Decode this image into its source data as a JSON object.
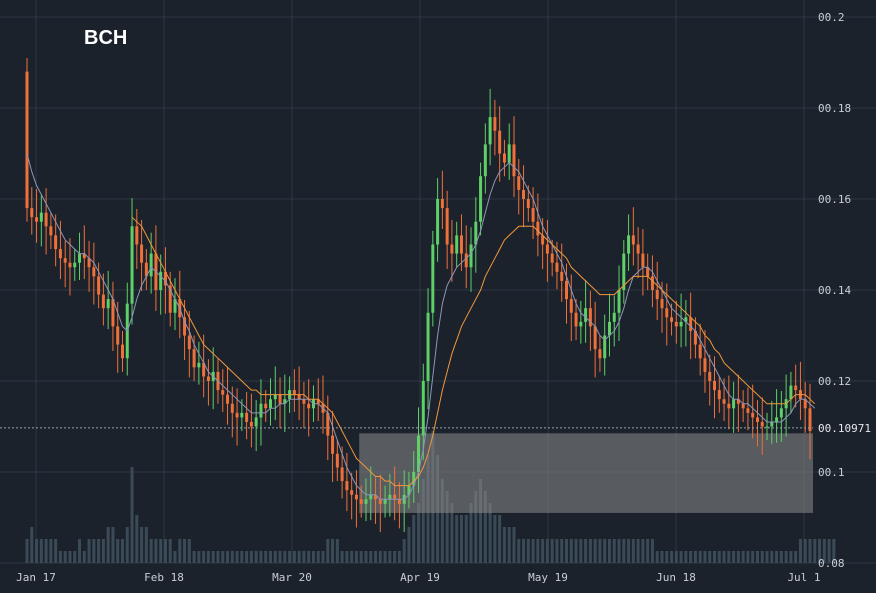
{
  "chart_data": {
    "type": "candlestick",
    "title": "BCH",
    "y_axis": {
      "range": [
        0.08,
        0.2
      ],
      "ticks": [
        {
          "value": 0.2,
          "label": "00.2"
        },
        {
          "value": 0.18,
          "label": "00.18"
        },
        {
          "value": 0.16,
          "label": "00.16"
        },
        {
          "value": 0.14,
          "label": "00.14"
        },
        {
          "value": 0.12,
          "label": "00.12"
        },
        {
          "value": 0.1,
          "label": "00.1"
        },
        {
          "value": 0.08,
          "label": "0.08"
        }
      ],
      "position": "right"
    },
    "x_axis": {
      "ticks": [
        {
          "label": "Jan 17",
          "index": 0
        },
        {
          "label": "Feb 18",
          "index": 32
        },
        {
          "label": "Mar 20",
          "index": 62
        },
        {
          "label": "Apr 19",
          "index": 92
        },
        {
          "label": "May 19",
          "index": 122
        },
        {
          "label": "Jun 18",
          "index": 152
        },
        {
          "label": "Jul 1",
          "index": 182
        }
      ]
    },
    "current_price": {
      "value": 0.10971,
      "label": "00.10971"
    },
    "highlight_zone": {
      "from_index": 70,
      "to_index": 186,
      "low": 0.091,
      "high": 0.1085
    },
    "up_color": "#5fd068",
    "down_color": "#f0703a",
    "ma_fast_color": "#8e96b8",
    "ma_slow_color": "#f2973c",
    "volume_color": "#3b4a57",
    "grid": true,
    "closes": [
      0.158,
      0.156,
      0.155,
      0.157,
      0.154,
      0.152,
      0.149,
      0.147,
      0.146,
      0.145,
      0.146,
      0.148,
      0.147,
      0.145,
      0.143,
      0.139,
      0.136,
      0.138,
      0.132,
      0.128,
      0.125,
      0.137,
      0.154,
      0.15,
      0.146,
      0.143,
      0.148,
      0.14,
      0.144,
      0.141,
      0.135,
      0.138,
      0.134,
      0.13,
      0.127,
      0.123,
      0.124,
      0.121,
      0.12,
      0.122,
      0.118,
      0.117,
      0.115,
      0.113,
      0.112,
      0.113,
      0.111,
      0.11,
      0.112,
      0.115,
      0.114,
      0.116,
      0.117,
      0.115,
      0.116,
      0.118,
      0.117,
      0.116,
      0.115,
      0.114,
      0.116,
      0.115,
      0.113,
      0.108,
      0.104,
      0.101,
      0.098,
      0.096,
      0.095,
      0.094,
      0.093,
      0.094,
      0.095,
      0.094,
      0.093,
      0.094,
      0.095,
      0.094,
      0.093,
      0.095,
      0.097,
      0.1,
      0.108,
      0.12,
      0.135,
      0.15,
      0.16,
      0.158,
      0.15,
      0.148,
      0.152,
      0.148,
      0.145,
      0.15,
      0.155,
      0.165,
      0.172,
      0.178,
      0.175,
      0.17,
      0.168,
      0.172,
      0.165,
      0.162,
      0.16,
      0.158,
      0.155,
      0.152,
      0.15,
      0.148,
      0.146,
      0.144,
      0.142,
      0.138,
      0.135,
      0.132,
      0.133,
      0.136,
      0.132,
      0.127,
      0.125,
      0.13,
      0.133,
      0.135,
      0.14,
      0.148,
      0.152,
      0.15,
      0.148,
      0.145,
      0.143,
      0.14,
      0.138,
      0.136,
      0.134,
      0.133,
      0.132,
      0.133,
      0.134,
      0.131,
      0.128,
      0.125,
      0.122,
      0.12,
      0.118,
      0.116,
      0.115,
      0.114,
      0.116,
      0.115,
      0.114,
      0.113,
      0.112,
      0.111,
      0.11,
      0.11,
      0.111,
      0.112,
      0.114,
      0.116,
      0.119,
      0.118,
      0.116,
      0.114,
      0.109
    ],
    "ma_fast": [
      0.17,
      0.166,
      0.163,
      0.161,
      0.159,
      0.157,
      0.155,
      0.153,
      0.151,
      0.15,
      0.149,
      0.148,
      0.148,
      0.147,
      0.146,
      0.144,
      0.142,
      0.14,
      0.138,
      0.135,
      0.132,
      0.131,
      0.134,
      0.138,
      0.141,
      0.143,
      0.145,
      0.144,
      0.143,
      0.142,
      0.14,
      0.138,
      0.136,
      0.133,
      0.131,
      0.128,
      0.126,
      0.124,
      0.122,
      0.121,
      0.12,
      0.119,
      0.118,
      0.117,
      0.116,
      0.115,
      0.114,
      0.113,
      0.113,
      0.113,
      0.113,
      0.114,
      0.114,
      0.115,
      0.115,
      0.116,
      0.116,
      0.116,
      0.116,
      0.116,
      0.115,
      0.115,
      0.114,
      0.113,
      0.11,
      0.107,
      0.104,
      0.101,
      0.099,
      0.097,
      0.096,
      0.095,
      0.095,
      0.095,
      0.094,
      0.094,
      0.094,
      0.094,
      0.094,
      0.094,
      0.095,
      0.097,
      0.1,
      0.105,
      0.112,
      0.121,
      0.13,
      0.137,
      0.141,
      0.143,
      0.145,
      0.146,
      0.147,
      0.148,
      0.15,
      0.153,
      0.157,
      0.161,
      0.164,
      0.166,
      0.167,
      0.168,
      0.167,
      0.166,
      0.164,
      0.162,
      0.16,
      0.157,
      0.154,
      0.152,
      0.15,
      0.148,
      0.146,
      0.143,
      0.14,
      0.137,
      0.135,
      0.134,
      0.133,
      0.132,
      0.13,
      0.129,
      0.13,
      0.131,
      0.133,
      0.136,
      0.14,
      0.143,
      0.144,
      0.145,
      0.145,
      0.144,
      0.142,
      0.14,
      0.138,
      0.136,
      0.135,
      0.134,
      0.133,
      0.132,
      0.131,
      0.129,
      0.127,
      0.125,
      0.123,
      0.121,
      0.119,
      0.117,
      0.116,
      0.116,
      0.115,
      0.115,
      0.114,
      0.113,
      0.112,
      0.111,
      0.111,
      0.111,
      0.111,
      0.112,
      0.113,
      0.115,
      0.116,
      0.116,
      0.115,
      0.114
    ],
    "ma_slow": [
      null,
      null,
      null,
      null,
      null,
      null,
      null,
      null,
      null,
      null,
      null,
      null,
      null,
      null,
      null,
      null,
      null,
      null,
      null,
      null,
      null,
      null,
      0.156,
      0.155,
      0.154,
      0.152,
      0.15,
      0.148,
      0.146,
      0.144,
      0.142,
      0.14,
      0.138,
      0.136,
      0.134,
      0.132,
      0.13,
      0.128,
      0.127,
      0.126,
      0.125,
      0.124,
      0.123,
      0.122,
      0.121,
      0.12,
      0.119,
      0.118,
      0.118,
      0.117,
      0.117,
      0.117,
      0.117,
      0.117,
      0.117,
      0.117,
      0.117,
      0.117,
      0.117,
      0.116,
      0.116,
      0.116,
      0.115,
      0.114,
      0.113,
      0.111,
      0.109,
      0.107,
      0.105,
      0.103,
      0.102,
      0.101,
      0.1,
      0.099,
      0.099,
      0.098,
      0.098,
      0.097,
      0.097,
      0.097,
      0.097,
      0.098,
      0.099,
      0.101,
      0.104,
      0.108,
      0.113,
      0.118,
      0.122,
      0.126,
      0.129,
      0.132,
      0.134,
      0.136,
      0.138,
      0.14,
      0.143,
      0.145,
      0.147,
      0.149,
      0.151,
      0.152,
      0.153,
      0.154,
      0.154,
      0.154,
      0.154,
      0.153,
      0.152,
      0.151,
      0.15,
      0.149,
      0.148,
      0.147,
      0.145,
      0.144,
      0.143,
      0.142,
      0.141,
      0.14,
      0.139,
      0.139,
      0.139,
      0.139,
      0.14,
      0.141,
      0.142,
      0.143,
      0.143,
      0.143,
      0.143,
      0.142,
      0.141,
      0.14,
      0.139,
      0.138,
      0.137,
      0.136,
      0.135,
      0.134,
      0.133,
      0.132,
      0.13,
      0.129,
      0.127,
      0.126,
      0.124,
      0.123,
      0.122,
      0.121,
      0.12,
      0.119,
      0.118,
      0.117,
      0.116,
      0.115,
      0.115,
      0.115,
      0.115,
      0.115,
      0.116,
      0.117,
      0.117,
      0.117,
      0.116,
      0.115
    ],
    "volumes": [
      2,
      3,
      2,
      2,
      2,
      2,
      2,
      1,
      1,
      1,
      1,
      2,
      1,
      2,
      2,
      2,
      2,
      3,
      3,
      2,
      2,
      3,
      8,
      4,
      3,
      3,
      2,
      2,
      2,
      2,
      2,
      1,
      2,
      2,
      2,
      1,
      1,
      1,
      1,
      1,
      1,
      1,
      1,
      1,
      1,
      1,
      1,
      1,
      1,
      1,
      1,
      1,
      1,
      1,
      1,
      1,
      1,
      1,
      1,
      1,
      1,
      1,
      1,
      2,
      2,
      2,
      1,
      1,
      1,
      1,
      1,
      1,
      1,
      1,
      1,
      1,
      1,
      1,
      1,
      2,
      3,
      4,
      5,
      7,
      9,
      11,
      9,
      7,
      6,
      5,
      4,
      4,
      4,
      5,
      6,
      7,
      6,
      5,
      4,
      4,
      3,
      3,
      3,
      2,
      2,
      2,
      2,
      2,
      2,
      2,
      2,
      2,
      2,
      2,
      2,
      2,
      2,
      2,
      2,
      2,
      2,
      2,
      2,
      2,
      2,
      2,
      2,
      2,
      2,
      2,
      2,
      2,
      1,
      1,
      1,
      1,
      1,
      1,
      1,
      1,
      1,
      1,
      1,
      1,
      1,
      1,
      1,
      1,
      1,
      1,
      1,
      1,
      1,
      1,
      1,
      1,
      1,
      1,
      1,
      1,
      1,
      1,
      2,
      2,
      2,
      2,
      2,
      2,
      2,
      2
    ]
  }
}
